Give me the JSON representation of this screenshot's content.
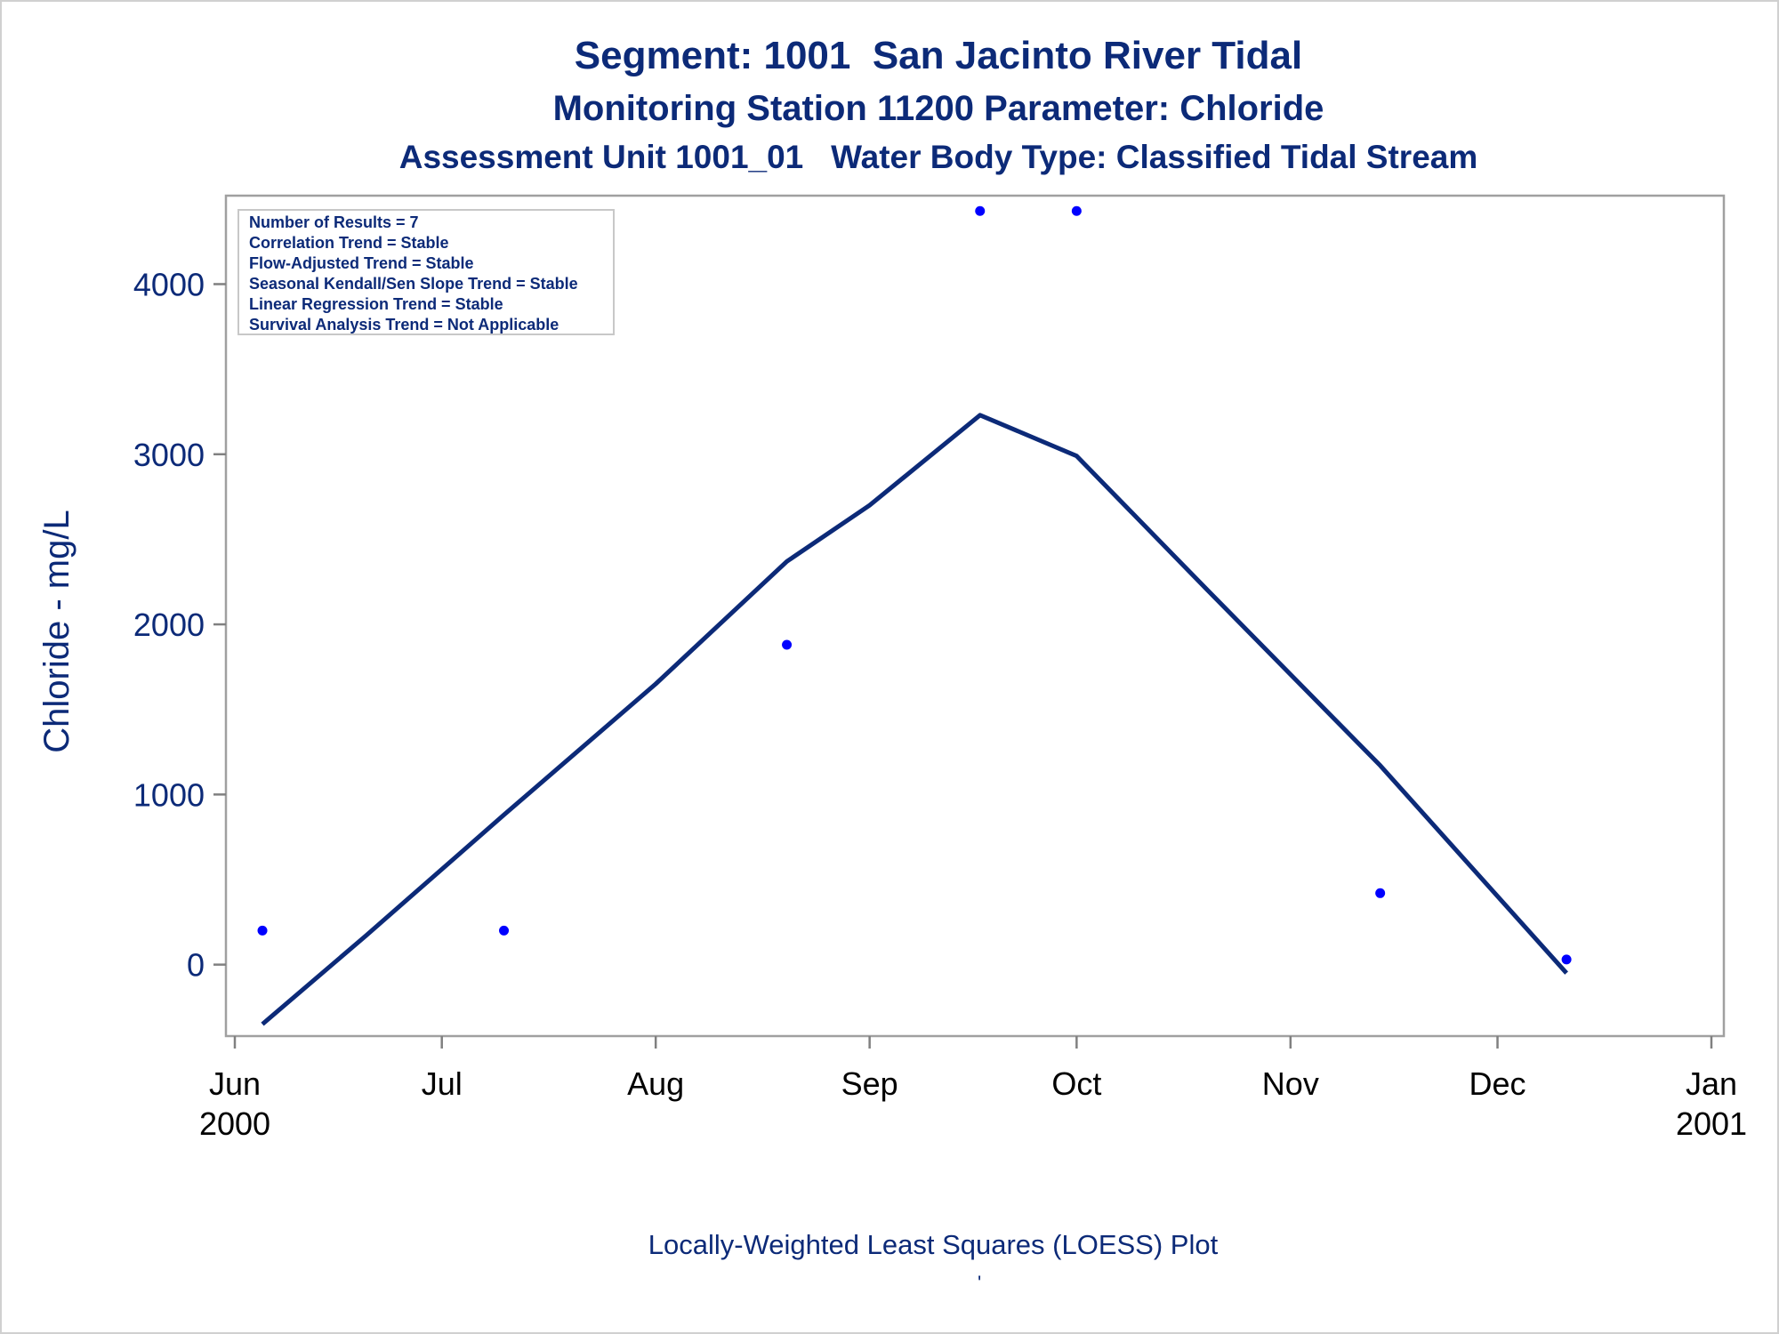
{
  "chart_data": {
    "type": "scatter",
    "title": "Segment: 1001  San Jacinto River Tidal",
    "subtitle": "Monitoring Station 11200 Parameter: Chloride",
    "subtitle2": "Assessment Unit 1001_01   Water Body Type: Classified Tidal Stream",
    "ylabel": "Chloride - mg/L",
    "xlabel": "Locally-Weighted Least Squares (LOESS) Plot",
    "footnote_mark": "'",
    "xlim": [
      "2000-06-01",
      "2001-01-01"
    ],
    "ylim": [
      -420,
      4520
    ],
    "yticks": [
      0,
      1000,
      2000,
      3000,
      4000
    ],
    "xticks": [
      {
        "date": "2000-06-01",
        "label": "Jun",
        "sublabel": "2000"
      },
      {
        "date": "2000-07-01",
        "label": "Jul",
        "sublabel": ""
      },
      {
        "date": "2000-08-01",
        "label": "Aug",
        "sublabel": ""
      },
      {
        "date": "2000-09-01",
        "label": "Sep",
        "sublabel": ""
      },
      {
        "date": "2000-10-01",
        "label": "Oct",
        "sublabel": ""
      },
      {
        "date": "2000-11-01",
        "label": "Nov",
        "sublabel": ""
      },
      {
        "date": "2000-12-01",
        "label": "Dec",
        "sublabel": ""
      },
      {
        "date": "2001-01-01",
        "label": "Jan",
        "sublabel": "2001"
      }
    ],
    "series": [
      {
        "kind": "points",
        "color": "#0000ff",
        "points": [
          {
            "x": "2000-06-05",
            "y": 200
          },
          {
            "x": "2000-07-10",
            "y": 200
          },
          {
            "x": "2000-08-20",
            "y": 1880
          },
          {
            "x": "2000-09-17",
            "y": 4430
          },
          {
            "x": "2000-10-01",
            "y": 4430
          },
          {
            "x": "2000-11-14",
            "y": 420
          },
          {
            "x": "2000-12-11",
            "y": 30
          }
        ]
      },
      {
        "kind": "line",
        "color": "#0c2a78",
        "points": [
          {
            "x": "2000-06-05",
            "y": -350
          },
          {
            "x": "2000-06-20",
            "y": 170
          },
          {
            "x": "2000-07-10",
            "y": 880
          },
          {
            "x": "2000-08-01",
            "y": 1650
          },
          {
            "x": "2000-08-20",
            "y": 2370
          },
          {
            "x": "2000-09-01",
            "y": 2700
          },
          {
            "x": "2000-09-17",
            "y": 3230
          },
          {
            "x": "2000-10-01",
            "y": 2990
          },
          {
            "x": "2000-10-20",
            "y": 2200
          },
          {
            "x": "2000-11-14",
            "y": 1170
          },
          {
            "x": "2000-12-11",
            "y": -50
          }
        ]
      }
    ],
    "stats_box": [
      "Number of Results = 7",
      "Correlation Trend = Stable",
      "Flow-Adjusted Trend = Stable",
      "Seasonal Kendall/Sen Slope Trend = Stable",
      "Linear Regression Trend = Stable",
      "Survival Analysis Trend = Not Applicable"
    ],
    "grid": false,
    "legend": "none"
  }
}
